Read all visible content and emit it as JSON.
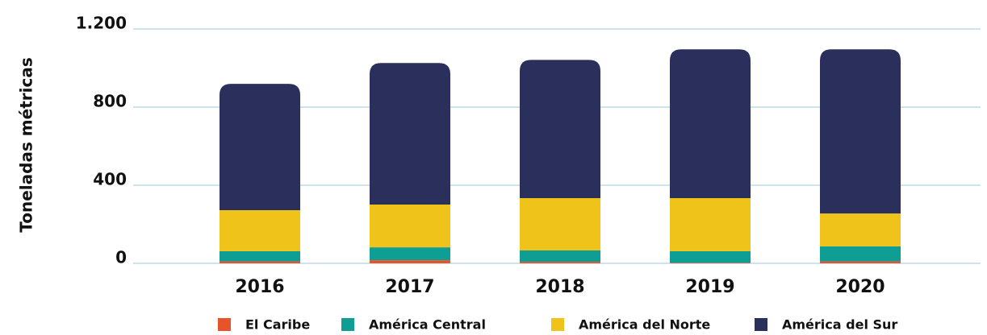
{
  "chart_data": {
    "type": "stacked_bar",
    "y_label": "Toneladas métricas",
    "categories": [
      "2016",
      "2017",
      "2018",
      "2019",
      "2020"
    ],
    "series": [
      {
        "name": "El Caribe",
        "color": "#e8542a",
        "values": [
          10,
          16,
          8,
          3,
          10
        ]
      },
      {
        "name": "América Central",
        "color": "#0e9e94",
        "values": [
          52,
          66,
          58,
          59,
          77
        ]
      },
      {
        "name": "América del Norte",
        "color": "#f0c31b",
        "values": [
          210,
          219,
          268,
          272,
          168
        ]
      },
      {
        "name": "América del Sur",
        "color": "#2b2f5b",
        "values": [
          647,
          725,
          708,
          762,
          841
        ]
      }
    ],
    "ylim": [
      0,
      1200
    ],
    "yticks": [
      0,
      400,
      800,
      {
        "value": 1200,
        "label": "1.200"
      }
    ],
    "grid": true,
    "legend": "bottom"
  }
}
